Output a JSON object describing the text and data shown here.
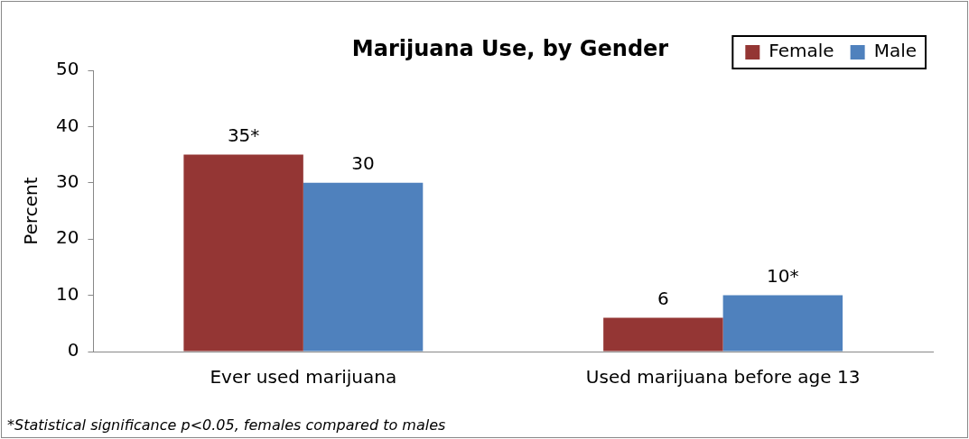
{
  "chart_data": {
    "type": "bar",
    "title": "Marijuana Use, by Gender",
    "ylabel": "Percent",
    "categories": [
      "Ever used marijuana",
      "Used marijuana before age 13"
    ],
    "series": [
      {
        "name": "Female",
        "color": "#943634",
        "values": [
          35,
          6
        ],
        "value_labels": [
          "35*",
          "6"
        ]
      },
      {
        "name": "Male",
        "color": "#4f81bd",
        "values": [
          30,
          10
        ],
        "value_labels": [
          "30",
          "10*"
        ]
      }
    ],
    "ylim": [
      0,
      50
    ],
    "yticks": [
      0,
      10,
      20,
      30,
      40,
      50
    ],
    "grid": false,
    "legend": "top right",
    "annotations": [
      "*Statistical significance p<0.05, females compared to males"
    ]
  }
}
